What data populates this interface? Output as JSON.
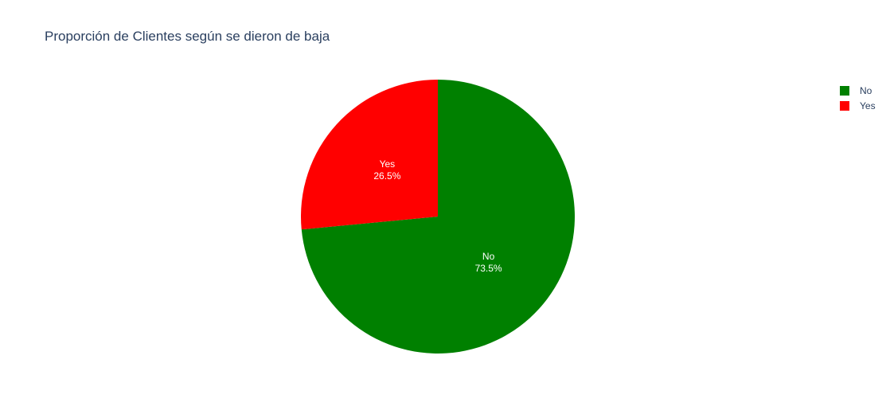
{
  "chart_data": {
    "type": "pie",
    "title": "Proporción de Clientes según se dieron de baja",
    "categories": [
      "No",
      "Yes"
    ],
    "values": [
      73.5,
      26.5
    ],
    "unit": "%",
    "colors": [
      "#008000",
      "#ff0000"
    ],
    "direction": "clockwise",
    "legend": {
      "placement": "top-right",
      "entries": [
        "No",
        "Yes"
      ]
    }
  }
}
